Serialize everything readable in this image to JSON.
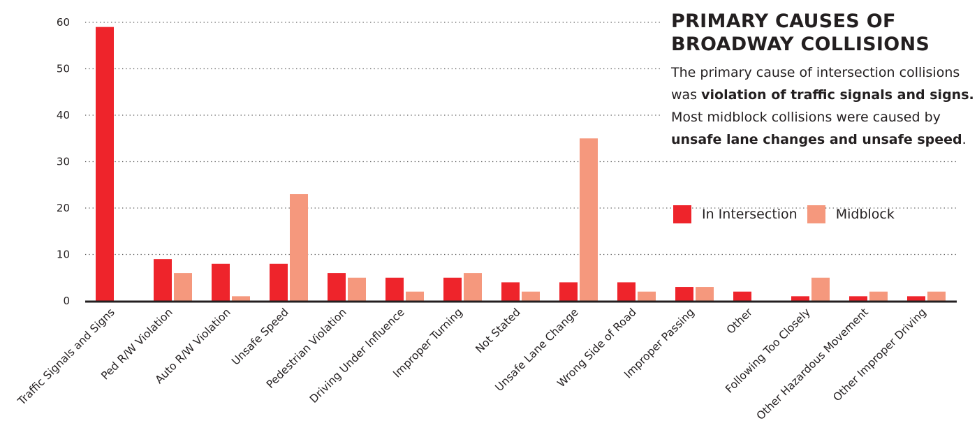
{
  "title_line1": "PRIMARY CAUSES OF",
  "title_line2": "BROADWAY COLLISIONS",
  "description": {
    "p1": "The primary cause of intersection collisions was ",
    "b1": "violation of traffic signals and signs.",
    "p2": " Most midblock collisions were caused by ",
    "b2": "unsafe lane changes and unsafe speed",
    "p3": "."
  },
  "colors": {
    "intersection": "#ee242b",
    "midblock": "#f5987d"
  },
  "chart_data": {
    "type": "bar",
    "title": "PRIMARY CAUSES OF BROADWAY COLLISIONS",
    "categories": [
      "Traffic Signals and Signs",
      "Ped R/W Violation",
      "Auto R/W Violation",
      "Unsafe Speed",
      "Pedestrian Violation",
      "Driving Under Influence",
      "Improper Turning",
      "Not Stated",
      "Unsafe Lane Change",
      "Wrong Side of Road",
      "Improper Passing",
      "Other",
      "Following Too Closely",
      "Other Hazardous Movement",
      "Other Improper Driving"
    ],
    "series": [
      {
        "name": "In Intersection",
        "values": [
          59,
          9,
          8,
          8,
          6,
          5,
          5,
          4,
          4,
          4,
          3,
          2,
          1,
          1,
          1
        ]
      },
      {
        "name": "Midblock",
        "values": [
          0,
          6,
          1,
          23,
          5,
          2,
          6,
          2,
          35,
          2,
          3,
          0,
          5,
          2,
          2
        ]
      }
    ],
    "yticks": [
      0,
      10,
      20,
      30,
      40,
      50,
      60
    ],
    "ylim": [
      0,
      60
    ],
    "grid": "dotted horizontal",
    "legend": "right"
  }
}
